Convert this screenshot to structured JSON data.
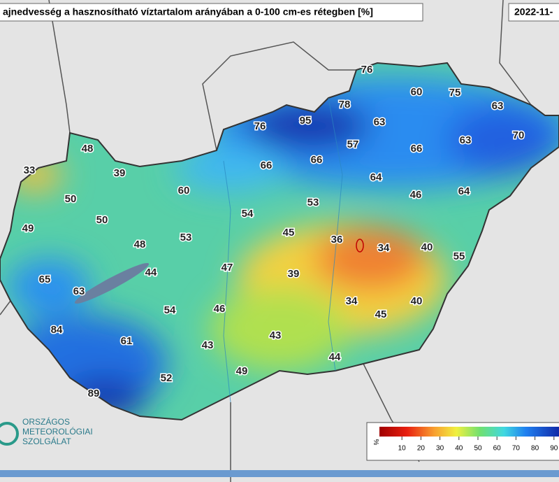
{
  "header": {
    "title": "ajnedvesség a hasznosítható víztartalom arányában a 0-100 cm-es rétegben [%]",
    "date": "2022-11-"
  },
  "stations": [
    76,
    60,
    75,
    78,
    63,
    76,
    95,
    63,
    63,
    70,
    48,
    57,
    66,
    33,
    39,
    66,
    66,
    64,
    60,
    46,
    64,
    50,
    53,
    54,
    50,
    49,
    45,
    36,
    34,
    40,
    53,
    48,
    55,
    47,
    44,
    39,
    65,
    63,
    54,
    46,
    34,
    40,
    45,
    84,
    43,
    61,
    43,
    44,
    49,
    52,
    89
  ],
  "legend": {
    "unit": "%",
    "ticks": [
      10,
      20,
      30,
      40,
      50,
      60,
      70,
      80,
      90
    ]
  },
  "logo": [
    "ORSZÁGOS",
    "METEOROLÓGIAI",
    "SZOLGÁLAT"
  ]
}
